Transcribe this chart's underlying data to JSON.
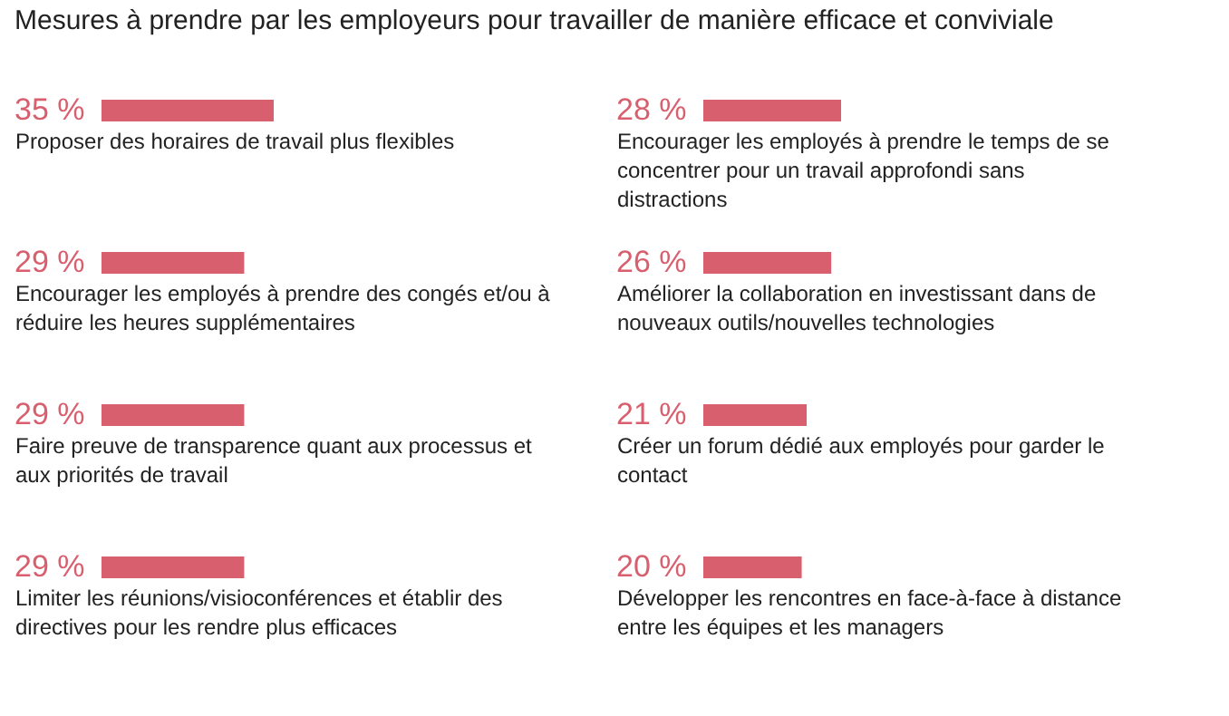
{
  "chart_data": [
    {
      "type": "bar",
      "orientation": "horizontal",
      "title": "Mesures à prendre par les employeurs pour travailler de manière efficace et conviviale",
      "categories": [
        "Proposer des horaires de travail plus flexibles",
        "Encourager les employés à prendre des congés et/ou à réduire les heures supplémentaires",
        "Faire preuve de transparence quant aux processus et aux priorités de travail",
        "Limiter les réunions/visioconférences et établir des directives pour les rendre plus efficaces"
      ],
      "values": [
        35,
        29,
        29,
        29
      ],
      "value_labels": [
        "35 %",
        "29 %",
        "29 %",
        "29 %"
      ],
      "color": "#d85f6e",
      "tick_labels": "y"
    },
    {
      "type": "bar",
      "orientation": "horizontal",
      "categories": [
        "Encourager les employés à prendre le temps de se concentrer pour un travail approfondi sans distractions",
        "Améliorer la collaboration en investissant dans de nouveaux outils/nouvelles technologies",
        "Créer un forum dédié aux employés pour garder le contact",
        "Développer les rencontres en face-à-face à distance entre les équipes et les managers"
      ],
      "values": [
        28,
        26,
        21,
        20
      ],
      "value_labels": [
        "28 %",
        "26 %",
        "21 %",
        "20 %"
      ],
      "color": "#d85f6e",
      "tick_labels": "y"
    }
  ]
}
